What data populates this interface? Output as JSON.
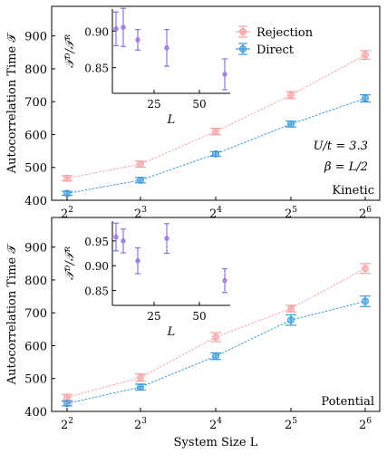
{
  "chart_data": [
    {
      "type": "line",
      "panel_label": "Kinetic",
      "annotation_lines": [
        "U/t = 3.3",
        "β = L/2"
      ],
      "ylabel": "Autocorrelation Time 𝒯",
      "xlabel": "",
      "x_ticks": [
        "2",
        "3",
        "4",
        "5",
        "6"
      ],
      "x_tick_base": "2",
      "log_x_base": 2,
      "y_ticks": [
        400,
        500,
        600,
        700,
        800,
        900
      ],
      "ylim": [
        400,
        990
      ],
      "legend": [
        "Rejection",
        "Direct"
      ],
      "legend_position": "top-right",
      "x": [
        4,
        8,
        16,
        32,
        64
      ],
      "series": [
        {
          "name": "Rejection",
          "color": "#f4a3a6",
          "values": [
            467,
            510,
            609,
            720,
            842
          ],
          "errors": [
            8,
            9,
            10,
            11,
            13
          ]
        },
        {
          "name": "Direct",
          "color": "#3a9ad9",
          "values": [
            421,
            461,
            541,
            632,
            710
          ],
          "errors": [
            6,
            8,
            7,
            9,
            11
          ]
        }
      ],
      "inset": {
        "ylabel": "𝒯ᴰ/𝒯ᴿ",
        "xlabel": "L",
        "x_ticks": [
          25,
          50
        ],
        "y_ticks": [
          0.85,
          0.9
        ],
        "xlim": [
          2,
          67
        ],
        "ylim": [
          0.815,
          0.93
        ],
        "color": "#9370db",
        "x": [
          4,
          8,
          16,
          32,
          64
        ],
        "values": [
          0.903,
          0.905,
          0.888,
          0.877,
          0.841
        ],
        "errors": [
          0.023,
          0.026,
          0.014,
          0.025,
          0.021
        ]
      }
    },
    {
      "type": "line",
      "panel_label": "Potential",
      "annotation_lines": [],
      "ylabel": "Autocorrelation Time 𝒯",
      "xlabel": "System Size  L",
      "x_ticks": [
        "2",
        "3",
        "4",
        "5",
        "6"
      ],
      "x_tick_base": "2",
      "log_x_base": 2,
      "y_ticks": [
        400,
        500,
        600,
        700,
        800,
        900
      ],
      "ylim": [
        400,
        990
      ],
      "legend": [],
      "x": [
        4,
        8,
        16,
        32,
        64
      ],
      "series": [
        {
          "name": "Rejection",
          "color": "#f4a3a6",
          "values": [
            443,
            503,
            626,
            713,
            835
          ],
          "errors": [
            9,
            11,
            14,
            10,
            15
          ]
        },
        {
          "name": "Direct",
          "color": "#3a9ad9",
          "values": [
            424,
            474,
            568,
            678,
            735
          ],
          "errors": [
            7,
            9,
            10,
            16,
            16
          ]
        }
      ],
      "inset": {
        "ylabel": "𝒯ᴰ/𝒯ᴿ",
        "xlabel": "L",
        "x_ticks": [
          25,
          50
        ],
        "y_ticks": [
          0.85,
          0.9,
          0.95
        ],
        "xlim": [
          2,
          67
        ],
        "ylim": [
          0.82,
          0.99
        ],
        "color": "#9370db",
        "x": [
          4,
          8,
          16,
          32,
          64
        ],
        "values": [
          0.958,
          0.95,
          0.91,
          0.955,
          0.87
        ],
        "errors": [
          0.028,
          0.024,
          0.026,
          0.03,
          0.024
        ]
      }
    }
  ]
}
